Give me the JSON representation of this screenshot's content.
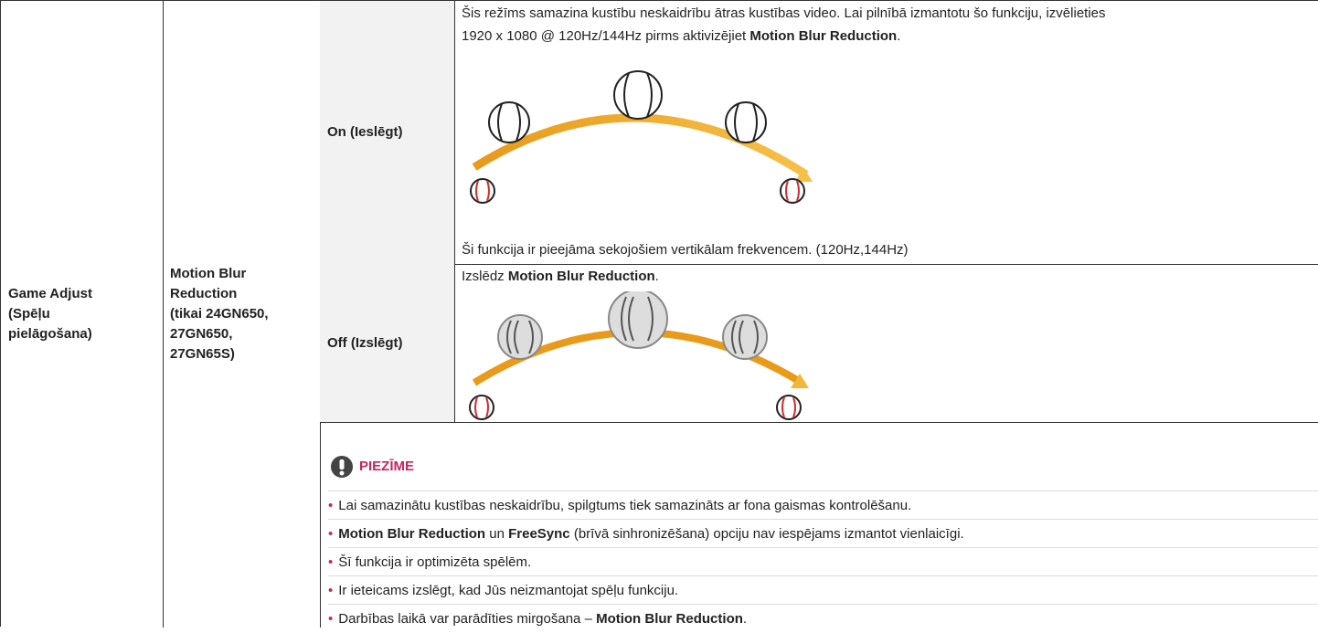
{
  "table": {
    "feature": [
      "Game Adjust",
      "(Spēļu",
      "pielāgošana)"
    ],
    "setting": [
      "Motion Blur",
      "Reduction",
      "(tikai 24GN650,",
      "27GN650,",
      "27GN65S)"
    ],
    "options": [
      {
        "label": "On (Ieslēgt)",
        "description": [
          "Šis režīms samazina kustību neskaidrību ātras kustības video. Lai pilnībā izmantotu šo funkciju, izvēlieties",
          "1920 x 1080 @ 120Hz/144Hz pirms aktivizējiet ",
          "Motion Blur Reduction",
          "."
        ],
        "footnote": "Ši funkcija ir pieejāma sekojošiem vertikālam frekvencem. (120Hz,144Hz)"
      },
      {
        "label": "Off (Izslēgt)",
        "description": [
          "Izslēdz ",
          "Motion Blur Reduction",
          "."
        ]
      }
    ],
    "note": {
      "title": "PIEZĪME",
      "items": [
        [
          "Lai samazinātu kustības neskaidrību, spilgtums tiek samazināts ar fona gaismas kontrolēšanu."
        ],
        [
          "Motion Blur Reduction",
          " un ",
          "FreeSync",
          " (brīvā sinhronizēšana) opciju nav iespējams izmantot vienlaicīgi."
        ],
        [
          "Šī funkcija ir optimizēta spēlēm."
        ],
        [
          "Ir ieteicams izslēgt, kad Jūs neizmantojat spēļu funkciju."
        ],
        [
          "Darbības laikā var parādīties mirgošana – ",
          "Motion Blur Reduction",
          "."
        ]
      ]
    }
  }
}
